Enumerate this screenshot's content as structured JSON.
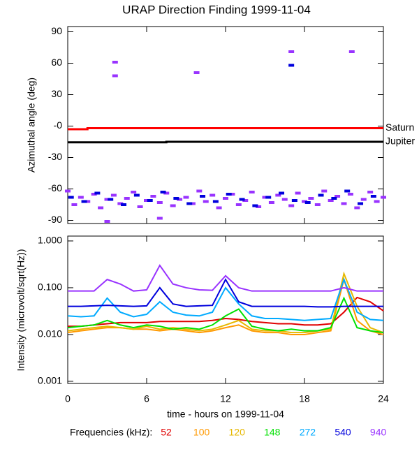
{
  "chart_data": [
    {
      "type": "line",
      "title": "URAP Direction Finding  1999-11-04",
      "ylabel": "Azimuthal angle (deg)",
      "xlim": [
        0,
        24
      ],
      "ylim": [
        -93,
        95
      ],
      "yticks": [
        90,
        60,
        30,
        {
          "value": 0,
          "label": "-0"
        },
        -30,
        -60,
        -90
      ],
      "series": [
        {
          "name": "Saturn",
          "type": "line",
          "color": "#ff0000",
          "x": [
            0,
            1.5,
            1.5,
            24
          ],
          "values": [
            -3,
            -3,
            -2,
            -2
          ]
        },
        {
          "name": "Jupiter",
          "type": "line",
          "color": "#000000",
          "x": [
            0,
            7.5,
            7.5,
            24
          ],
          "values": [
            -15.5,
            -15.5,
            -15,
            -15
          ]
        },
        {
          "type": "scatter",
          "color": "#9933ff",
          "x": [
            0,
            0.5,
            1,
            1.5,
            2,
            2.5,
            3,
            3.5,
            4,
            4.5,
            5,
            5.5,
            6,
            6.5,
            7,
            7.5,
            8,
            8.5,
            9,
            9.5,
            10,
            10.5,
            11,
            11.5,
            12,
            12.5,
            13,
            13.5,
            14,
            14.5,
            15,
            15.5,
            16,
            16.5,
            17,
            17.5,
            18,
            18.5,
            19,
            19.5,
            20,
            20.5,
            21,
            21.5,
            22,
            22.5,
            23,
            23.5,
            24,
            3.6,
            3.6,
            9.8,
            17,
            21.6,
            3,
            7
          ],
          "values": [
            -62,
            -75,
            -68,
            -72,
            -65,
            -78,
            -70,
            -66,
            -74,
            -69,
            -63,
            -77,
            -71,
            -67,
            -73,
            -64,
            -76,
            -70,
            -68,
            -74,
            -62,
            -72,
            -66,
            -78,
            -69,
            -65,
            -75,
            -71,
            -63,
            -77,
            -68,
            -73,
            -66,
            -70,
            -76,
            -64,
            -72,
            -69,
            -75,
            -62,
            -71,
            -67,
            -74,
            -65,
            -78,
            -70,
            -63,
            -72,
            -68,
            61,
            48,
            51,
            71,
            71,
            -91,
            -88
          ]
        },
        {
          "type": "scatter",
          "color": "#0000dd",
          "x": [
            0.25,
            1.25,
            2.25,
            3.25,
            4.25,
            5.25,
            6.25,
            7.25,
            8.25,
            9.25,
            10.25,
            11.25,
            12.25,
            13.25,
            14.25,
            15.25,
            16.25,
            17.25,
            18.25,
            19.25,
            20.25,
            21.25,
            22.25,
            23.25,
            17
          ],
          "values": [
            -68,
            -72,
            -64,
            -70,
            -75,
            -66,
            -71,
            -63,
            -69,
            -74,
            -67,
            -72,
            -65,
            -70,
            -76,
            -68,
            -64,
            -71,
            -73,
            -66,
            -69,
            -62,
            -74,
            -67,
            58
          ]
        }
      ]
    },
    {
      "type": "line",
      "ylabel": "Intensity (microvolt/sqrt(Hz))",
      "xlabel": "time - hours on 1999-11-04",
      "legend_title": "Frequencies (kHz):",
      "log_scale": true,
      "xlim": [
        0,
        24
      ],
      "xticks": [
        0,
        6,
        12,
        18,
        24
      ],
      "ylim": [
        0.0009,
        1.27
      ],
      "yticks": [
        {
          "value": 1,
          "label": "1.000"
        },
        {
          "value": 0.1,
          "label": "0.100"
        },
        {
          "value": 0.01,
          "label": "0.010"
        },
        {
          "value": 0.001,
          "label": "0.001"
        }
      ],
      "x": [
        0,
        1,
        2,
        3,
        4,
        5,
        6,
        7,
        8,
        9,
        10,
        11,
        12,
        13,
        14,
        15,
        16,
        17,
        18,
        19,
        20,
        21,
        22,
        23,
        24
      ],
      "series": [
        {
          "name": "52",
          "color": "#e00000",
          "values": [
            0.015,
            0.015,
            0.016,
            0.017,
            0.018,
            0.018,
            0.018,
            0.019,
            0.019,
            0.019,
            0.019,
            0.02,
            0.022,
            0.021,
            0.019,
            0.018,
            0.017,
            0.017,
            0.016,
            0.016,
            0.017,
            0.03,
            0.062,
            0.05,
            0.032
          ]
        },
        {
          "name": "100",
          "color": "#ff9900",
          "values": [
            0.011,
            0.012,
            0.013,
            0.014,
            0.014,
            0.013,
            0.013,
            0.012,
            0.013,
            0.012,
            0.011,
            0.012,
            0.014,
            0.016,
            0.012,
            0.011,
            0.011,
            0.01,
            0.01,
            0.011,
            0.012,
            0.15,
            0.02,
            0.012,
            0.01
          ]
        },
        {
          "name": "120",
          "color": "#e6b800",
          "values": [
            0.012,
            0.013,
            0.014,
            0.015,
            0.014,
            0.013,
            0.015,
            0.013,
            0.014,
            0.013,
            0.012,
            0.013,
            0.016,
            0.02,
            0.013,
            0.012,
            0.012,
            0.011,
            0.011,
            0.012,
            0.013,
            0.2,
            0.04,
            0.014,
            0.011
          ]
        },
        {
          "name": "148",
          "color": "#00e000",
          "values": [
            0.014,
            0.015,
            0.016,
            0.02,
            0.016,
            0.014,
            0.016,
            0.015,
            0.013,
            0.014,
            0.013,
            0.016,
            0.025,
            0.035,
            0.015,
            0.013,
            0.012,
            0.013,
            0.012,
            0.012,
            0.014,
            0.06,
            0.014,
            0.012,
            0.011
          ]
        },
        {
          "name": "272",
          "color": "#00aaff",
          "values": [
            0.025,
            0.024,
            0.025,
            0.06,
            0.03,
            0.024,
            0.027,
            0.05,
            0.03,
            0.026,
            0.025,
            0.03,
            0.1,
            0.045,
            0.025,
            0.022,
            0.022,
            0.021,
            0.02,
            0.021,
            0.022,
            0.15,
            0.03,
            0.021,
            0.02
          ]
        },
        {
          "name": "540",
          "color": "#0000dd",
          "values": [
            0.04,
            0.04,
            0.041,
            0.042,
            0.041,
            0.04,
            0.041,
            0.1,
            0.045,
            0.04,
            0.041,
            0.042,
            0.15,
            0.05,
            0.04,
            0.04,
            0.04,
            0.04,
            0.04,
            0.039,
            0.039,
            0.04,
            0.04,
            0.04,
            0.04
          ]
        },
        {
          "name": "940",
          "color": "#9933ff",
          "values": [
            0.085,
            0.085,
            0.085,
            0.15,
            0.12,
            0.085,
            0.09,
            0.3,
            0.12,
            0.1,
            0.09,
            0.088,
            0.18,
            0.1,
            0.085,
            0.085,
            0.085,
            0.085,
            0.085,
            0.085,
            0.085,
            0.1,
            0.085,
            0.085,
            0.085
          ]
        }
      ]
    }
  ]
}
